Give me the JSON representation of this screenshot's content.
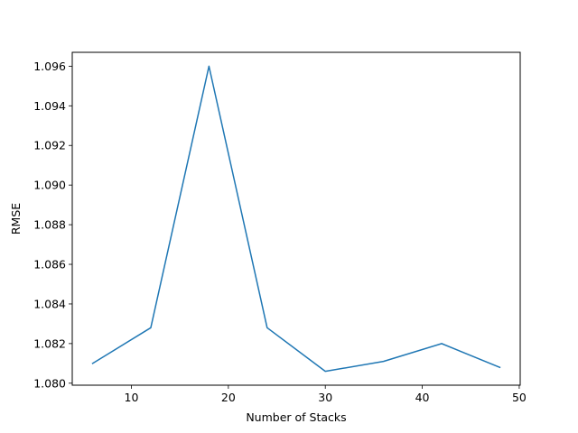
{
  "chart_data": {
    "type": "line",
    "title": "",
    "xlabel": "Number of Stacks",
    "ylabel": "RMSE",
    "x": [
      6,
      12,
      18,
      24,
      30,
      36,
      42,
      48
    ],
    "series": [
      {
        "values": [
          1.081,
          1.0828,
          1.096,
          1.0828,
          1.0806,
          1.0811,
          1.082,
          1.0808
        ],
        "color": "#1f77b4"
      }
    ],
    "xlim": [
      3.9,
      50.1
    ],
    "ylim": [
      1.0799,
      1.0967
    ],
    "xticks": [
      10,
      20,
      30,
      40,
      50
    ],
    "xtick_labels": [
      "10",
      "20",
      "30",
      "40",
      "50"
    ],
    "yticks": [
      1.08,
      1.082,
      1.084,
      1.086,
      1.088,
      1.09,
      1.092,
      1.094,
      1.096
    ],
    "ytick_labels": [
      "1.080",
      "1.082",
      "1.084",
      "1.086",
      "1.088",
      "1.090",
      "1.092",
      "1.094",
      "1.096"
    ],
    "grid": false,
    "legend": "none"
  }
}
